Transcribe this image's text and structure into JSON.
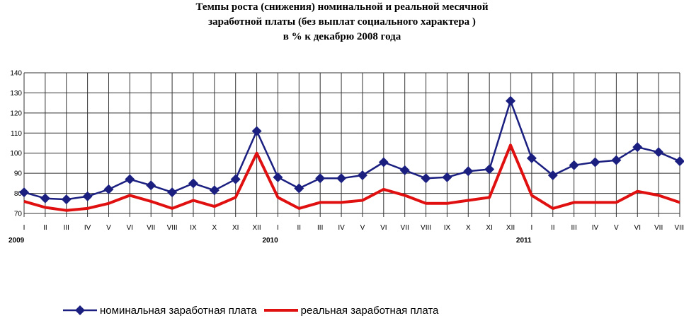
{
  "title_lines": [
    "Темпы роста (снижения) номинальной и реальной месячной",
    "заработной платы (без выплат социального характера )",
    "в % к декабрю 2008 года"
  ],
  "chart_data": {
    "type": "line",
    "title": "Темпы роста (снижения) номинальной и реальной месячной заработной платы (без выплат социального характера ) в % к декабрю 2008 года",
    "categories": [
      "I",
      "II",
      "III",
      "IV",
      "V",
      "VI",
      "VII",
      "VIII",
      "IX",
      "X",
      "XI",
      "XII",
      "I",
      "II",
      "III",
      "IV",
      "V",
      "VI",
      "VII",
      "VIII",
      "IX",
      "X",
      "XI",
      "XII",
      "I",
      "II",
      "III",
      "IV",
      "V",
      "VI",
      "VII",
      "VIII"
    ],
    "year_labels": [
      {
        "label": "2009",
        "index": 0
      },
      {
        "label": "2010",
        "index": 12
      },
      {
        "label": "2011",
        "index": 24
      }
    ],
    "ylim": [
      70,
      140
    ],
    "yticks": [
      "70",
      "80",
      "90",
      "100",
      "110",
      "120",
      "130",
      "140"
    ],
    "grid": true,
    "legend_position": "bottom",
    "series": [
      {
        "name": "номинальная заработная плата",
        "color": "#1a1f80",
        "marker": "diamond",
        "values": [
          80.5,
          77.5,
          77,
          78.5,
          82,
          87,
          84,
          80.5,
          85,
          81.5,
          87,
          111,
          88,
          82.5,
          87.5,
          87.5,
          89,
          95.5,
          91.5,
          87.5,
          88,
          91,
          92,
          126,
          97.5,
          89,
          94,
          95.5,
          96.5,
          103,
          100.5,
          96
        ]
      },
      {
        "name": "реальная заработная плата",
        "color": "#e01010",
        "marker": "none",
        "values": [
          76,
          73,
          71.5,
          72.5,
          75,
          79,
          76,
          72.5,
          76.5,
          73.5,
          78,
          100,
          78,
          72.5,
          75.5,
          75.5,
          76.5,
          82,
          79,
          75,
          75,
          76.5,
          78,
          104,
          79,
          72.5,
          75.5,
          75.5,
          75.5,
          81,
          79,
          75.5
        ]
      }
    ]
  }
}
